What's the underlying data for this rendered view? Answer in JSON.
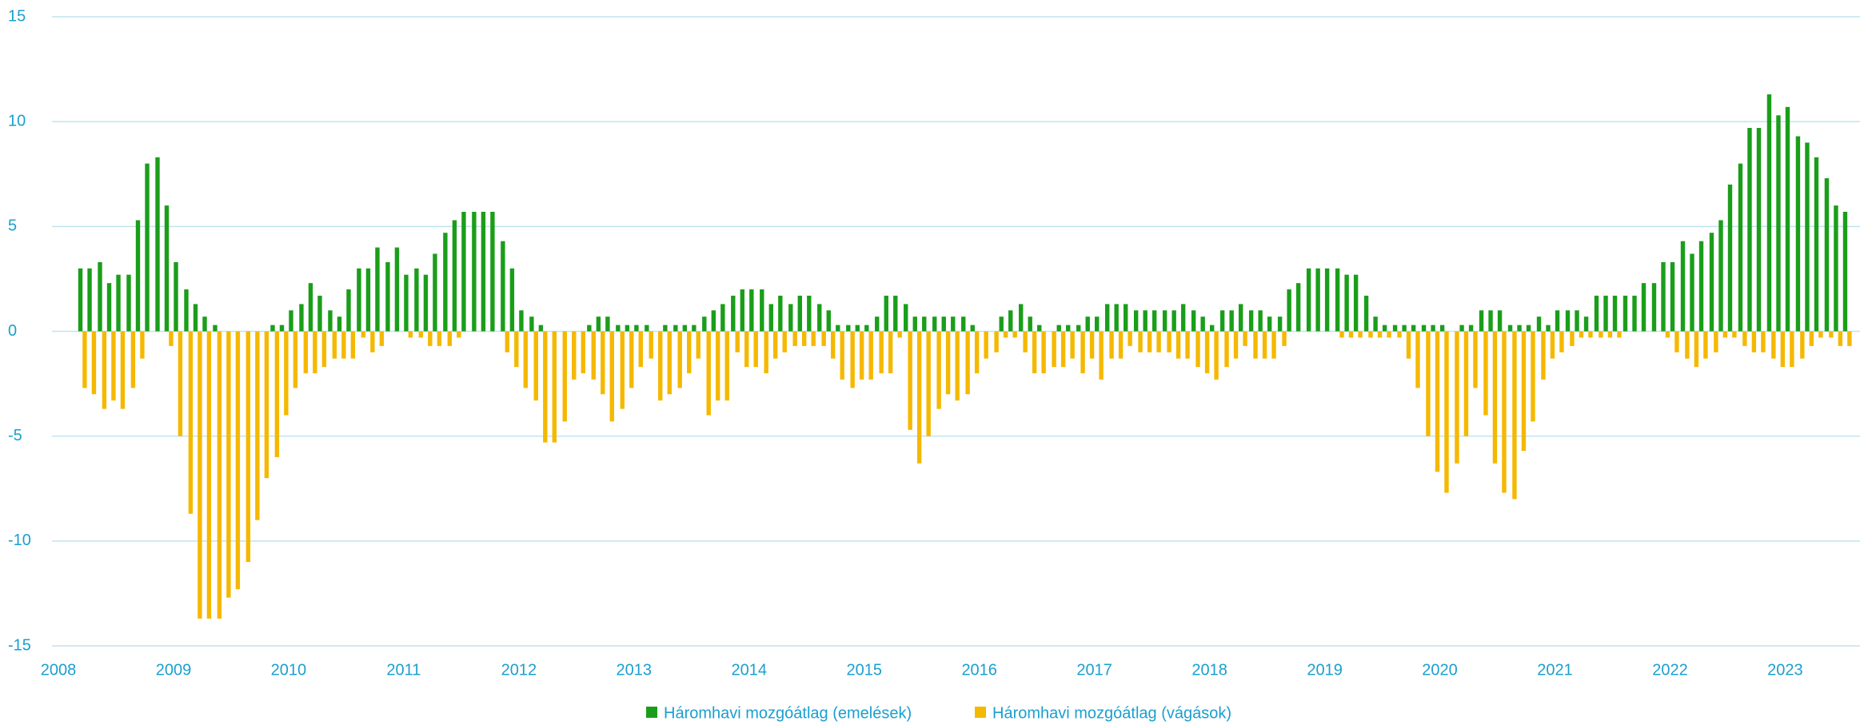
{
  "chart_data": {
    "type": "bar",
    "x": [
      2008.21,
      2008.29,
      2008.38,
      2008.46,
      2008.54,
      2008.63,
      2008.71,
      2008.79,
      2008.88,
      2008.96,
      2009.04,
      2009.13,
      2009.21,
      2009.29,
      2009.38,
      2009.46,
      2009.54,
      2009.63,
      2009.71,
      2009.79,
      2009.88,
      2009.96,
      2010.04,
      2010.13,
      2010.21,
      2010.29,
      2010.38,
      2010.46,
      2010.54,
      2010.63,
      2010.71,
      2010.79,
      2010.88,
      2010.96,
      2011.04,
      2011.13,
      2011.21,
      2011.29,
      2011.38,
      2011.46,
      2011.54,
      2011.63,
      2011.71,
      2011.79,
      2011.88,
      2011.96,
      2012.04,
      2012.13,
      2012.21,
      2012.29,
      2012.38,
      2012.46,
      2012.54,
      2012.63,
      2012.71,
      2012.79,
      2012.88,
      2012.96,
      2013.04,
      2013.13,
      2013.21,
      2013.29,
      2013.38,
      2013.46,
      2013.54,
      2013.63,
      2013.71,
      2013.79,
      2013.88,
      2013.96,
      2014.04,
      2014.13,
      2014.21,
      2014.29,
      2014.38,
      2014.46,
      2014.54,
      2014.63,
      2014.71,
      2014.79,
      2014.88,
      2014.96,
      2015.04,
      2015.13,
      2015.21,
      2015.29,
      2015.38,
      2015.46,
      2015.54,
      2015.63,
      2015.71,
      2015.79,
      2015.88,
      2015.96,
      2016.04,
      2016.13,
      2016.21,
      2016.29,
      2016.38,
      2016.46,
      2016.54,
      2016.63,
      2016.71,
      2016.79,
      2016.88,
      2016.96,
      2017.04,
      2017.13,
      2017.21,
      2017.29,
      2017.38,
      2017.46,
      2017.54,
      2017.63,
      2017.71,
      2017.79,
      2017.88,
      2017.96,
      2018.04,
      2018.13,
      2018.21,
      2018.29,
      2018.38,
      2018.46,
      2018.54,
      2018.63,
      2018.71,
      2018.79,
      2018.88,
      2018.96,
      2019.04,
      2019.13,
      2019.21,
      2019.29,
      2019.38,
      2019.46,
      2019.54,
      2019.63,
      2019.71,
      2019.79,
      2019.88,
      2019.96,
      2020.04,
      2020.13,
      2020.21,
      2020.29,
      2020.38,
      2020.46,
      2020.54,
      2020.63,
      2020.71,
      2020.79,
      2020.88,
      2020.96,
      2021.04,
      2021.13,
      2021.21,
      2021.29,
      2021.38,
      2021.46,
      2021.54,
      2021.63,
      2021.71,
      2021.79,
      2021.88,
      2021.96,
      2022.04,
      2022.13,
      2022.21,
      2022.29,
      2022.38,
      2022.46,
      2022.54,
      2022.63,
      2022.71,
      2022.79,
      2022.88,
      2022.96,
      2023.04,
      2023.13,
      2023.21,
      2023.29,
      2023.38,
      2023.46,
      2023.54
    ],
    "series": [
      {
        "name": "Háromhavi mozgóátlag (emelések)",
        "color": "#1a9e1a",
        "values": [
          3.0,
          3.0,
          3.3,
          2.3,
          2.7,
          2.7,
          5.3,
          8.0,
          8.3,
          6.0,
          3.3,
          2.0,
          1.3,
          0.7,
          0.3,
          0,
          0,
          0,
          0,
          0,
          0.3,
          0.3,
          1.0,
          1.3,
          2.3,
          1.7,
          1.0,
          0.7,
          2.0,
          3.0,
          3.0,
          4.0,
          3.3,
          4.0,
          2.7,
          3.0,
          2.7,
          3.7,
          4.7,
          5.3,
          5.7,
          5.7,
          5.7,
          5.7,
          4.3,
          3.0,
          1.0,
          0.7,
          0.3,
          0,
          0,
          0,
          0,
          0.3,
          0.7,
          0.7,
          0.3,
          0.3,
          0.3,
          0.3,
          0,
          0.3,
          0.3,
          0.3,
          0.3,
          0.7,
          1.0,
          1.3,
          1.7,
          2.0,
          2.0,
          2.0,
          1.3,
          1.7,
          1.3,
          1.7,
          1.7,
          1.3,
          1.0,
          0.3,
          0.3,
          0.3,
          0.3,
          0.7,
          1.7,
          1.7,
          1.3,
          0.7,
          0.7,
          0.7,
          0.7,
          0.7,
          0.7,
          0.3,
          0,
          0,
          0.7,
          1.0,
          1.3,
          0.7,
          0.3,
          0,
          0.3,
          0.3,
          0.3,
          0.7,
          0.7,
          1.3,
          1.3,
          1.3,
          1.0,
          1.0,
          1.0,
          1.0,
          1.0,
          1.3,
          1.0,
          0.7,
          0.3,
          1.0,
          1.0,
          1.3,
          1.0,
          1.0,
          0.7,
          0.7,
          2.0,
          2.3,
          3.0,
          3.0,
          3.0,
          3.0,
          2.7,
          2.7,
          1.7,
          0.7,
          0.3,
          0.3,
          0.3,
          0.3,
          0.3,
          0.3,
          0.3,
          0,
          0.3,
          0.3,
          1.0,
          1.0,
          1.0,
          0.3,
          0.3,
          0.3,
          0.7,
          0.3,
          1.0,
          1.0,
          1.0,
          0.7,
          1.7,
          1.7,
          1.7,
          1.7,
          1.7,
          2.3,
          2.3,
          3.3,
          3.3,
          4.3,
          3.7,
          4.3,
          4.7,
          5.3,
          7.0,
          8.0,
          9.7,
          9.7,
          11.3,
          10.3,
          10.7,
          9.3,
          9.0,
          8.3,
          7.3,
          6.0,
          5.7
        ]
      },
      {
        "name": "Háromhavi mozgóátlag (vágások)",
        "color": "#f5b800",
        "values": [
          -2.7,
          -3.0,
          -3.7,
          -3.3,
          -3.7,
          -2.7,
          -1.3,
          0,
          0,
          -0.7,
          -5.0,
          -8.7,
          -13.7,
          -13.7,
          -13.7,
          -12.7,
          -12.3,
          -11.0,
          -9.0,
          -7.0,
          -6.0,
          -4.0,
          -2.7,
          -2.0,
          -2.0,
          -1.7,
          -1.3,
          -1.3,
          -1.3,
          -0.3,
          -1.0,
          -0.7,
          0,
          0,
          -0.3,
          -0.3,
          -0.7,
          -0.7,
          -0.7,
          -0.3,
          0,
          0,
          0,
          0,
          -1.0,
          -1.7,
          -2.7,
          -3.3,
          -5.3,
          -5.3,
          -4.3,
          -2.3,
          -2.0,
          -2.3,
          -3.0,
          -4.3,
          -3.7,
          -2.7,
          -1.7,
          -1.3,
          -3.3,
          -3.0,
          -2.7,
          -2.0,
          -1.3,
          -4.0,
          -3.3,
          -3.3,
          -1.0,
          -1.7,
          -1.7,
          -2.0,
          -1.3,
          -1.0,
          -0.7,
          -0.7,
          -0.7,
          -0.7,
          -1.3,
          -2.3,
          -2.7,
          -2.3,
          -2.3,
          -2.0,
          -2.0,
          -0.3,
          -4.7,
          -6.3,
          -5.0,
          -3.7,
          -3.0,
          -3.3,
          -3.0,
          -2.0,
          -1.3,
          -1.0,
          -0.3,
          -0.3,
          -1.0,
          -2.0,
          -2.0,
          -1.7,
          -1.7,
          -1.3,
          -2.0,
          -1.3,
          -2.3,
          -1.3,
          -1.3,
          -0.7,
          -1.0,
          -1.0,
          -1.0,
          -1.0,
          -1.3,
          -1.3,
          -1.7,
          -2.0,
          -2.3,
          -1.7,
          -1.3,
          -0.7,
          -1.3,
          -1.3,
          -1.3,
          -0.7,
          0,
          0,
          0,
          0,
          0,
          -0.3,
          -0.3,
          -0.3,
          -0.3,
          -0.3,
          -0.3,
          -0.3,
          -1.3,
          -2.7,
          -5.0,
          -6.7,
          -7.7,
          -6.3,
          -5.0,
          -2.7,
          -4.0,
          -6.3,
          -7.7,
          -8.0,
          -5.7,
          -4.3,
          -2.3,
          -1.3,
          -1.0,
          -0.7,
          -0.3,
          -0.3,
          -0.3,
          -0.3,
          -0.3,
          0,
          0,
          0,
          0,
          -0.3,
          -1.0,
          -1.3,
          -1.7,
          -1.3,
          -1.0,
          -0.3,
          -0.3,
          -0.7,
          -1.0,
          -1.0,
          -1.3,
          -1.7,
          -1.7,
          -1.3,
          -0.7,
          -0.3,
          -0.3,
          -0.7,
          -0.7
        ]
      }
    ],
    "xlim": [
      2008,
      2023.65
    ],
    "xticks": [
      2008,
      2009,
      2010,
      2011,
      2012,
      2013,
      2014,
      2015,
      2016,
      2017,
      2018,
      2019,
      2020,
      2021,
      2022,
      2023
    ],
    "ylim": [
      -15,
      15
    ],
    "yticks": [
      -15,
      -10,
      -5,
      0,
      5,
      10,
      15
    ],
    "grid": true,
    "legend": "bottom"
  }
}
